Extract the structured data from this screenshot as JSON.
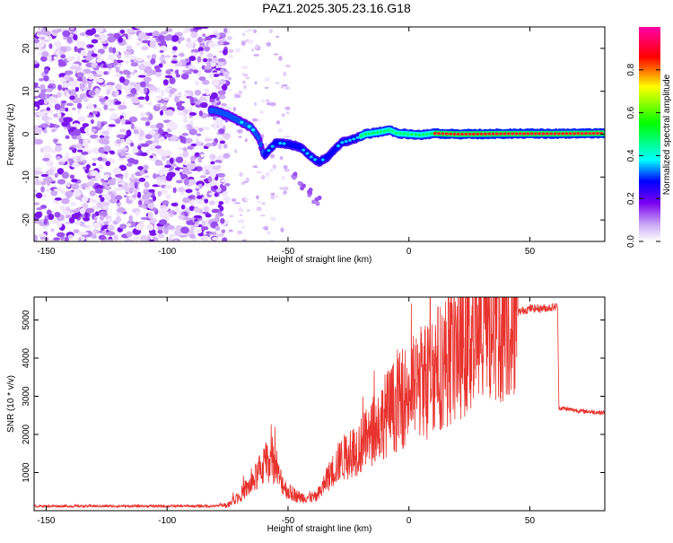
{
  "page_title": "PAZ1.2025.305.23.16.G18",
  "chart_data": [
    {
      "type": "heatmap",
      "name": "spectrogram",
      "xlabel": "Height of straight line (km)",
      "ylabel": "Frequency (Hz)",
      "xlim": [
        -155,
        81
      ],
      "ylim": [
        -25,
        25
      ],
      "xticks": [
        -150,
        -100,
        -50,
        0,
        50
      ],
      "xtick_labels": [
        "-150",
        "-100",
        "-50",
        "0",
        "50"
      ],
      "yticks": [
        -20,
        -10,
        0,
        10,
        20
      ],
      "ytick_labels": [
        "-20",
        "-10",
        "0",
        "10",
        "20"
      ],
      "main_trace": [
        [
          -80,
          5.5
        ],
        [
          -75,
          4.5
        ],
        [
          -70,
          3.0
        ],
        [
          -65,
          1.5
        ],
        [
          -62,
          -1.0
        ],
        [
          -60,
          -5.0
        ],
        [
          -55,
          -2.0
        ],
        [
          -50,
          -2.3
        ],
        [
          -45,
          -3.0
        ],
        [
          -40,
          -5.5
        ],
        [
          -37,
          -6.5
        ],
        [
          -33,
          -5.0
        ],
        [
          -28,
          -2.0
        ],
        [
          -22,
          -1.0
        ],
        [
          -18,
          0.0
        ],
        [
          -12,
          0.5
        ],
        [
          -8,
          1.0
        ],
        [
          -5,
          0.2
        ],
        [
          0,
          0.0
        ],
        [
          5,
          -0.2
        ],
        [
          10,
          0.2
        ],
        [
          20,
          0.0
        ],
        [
          40,
          0.1
        ],
        [
          60,
          0.1
        ],
        [
          80,
          0.2
        ]
      ],
      "secondary_trace": [
        [
          -48,
          -10.0
        ],
        [
          -44,
          -12.0
        ],
        [
          -40,
          -13.5
        ],
        [
          -38,
          -15.5
        ]
      ],
      "noise_region_x": [
        -155,
        -75
      ],
      "colorbar": {
        "label": "Normalized spectral amplitude",
        "range": [
          0,
          1
        ],
        "ticks": [
          0.0,
          0.2,
          0.4,
          0.6,
          0.8
        ],
        "tick_labels": [
          "0.0",
          "0.2",
          "0.4",
          "0.6",
          "0.8"
        ]
      }
    },
    {
      "type": "line",
      "name": "snr",
      "xlabel": "Height of straight line (km)",
      "ylabel": "SNR (10 * v/v)",
      "xlim": [
        -155,
        81
      ],
      "ylim": [
        0,
        5600
      ],
      "xticks": [
        -150,
        -100,
        -50,
        0,
        50
      ],
      "xtick_labels": [
        "-150",
        "-100",
        "-50",
        "0",
        "50"
      ],
      "yticks": [
        1000,
        2000,
        3000,
        4000,
        5000
      ],
      "ytick_labels": [
        "1000",
        "2000",
        "3000",
        "4000",
        "5000"
      ],
      "color": "#e8322d",
      "envelope": [
        [
          -155,
          120
        ],
        [
          -80,
          120
        ],
        [
          -75,
          150
        ],
        [
          -70,
          400
        ],
        [
          -65,
          700
        ],
        [
          -60,
          1200
        ],
        [
          -57,
          1400
        ],
        [
          -54,
          900
        ],
        [
          -50,
          500
        ],
        [
          -45,
          350
        ],
        [
          -38,
          350
        ],
        [
          -34,
          800
        ],
        [
          -30,
          1200
        ],
        [
          -25,
          1500
        ],
        [
          -20,
          1700
        ],
        [
          -15,
          2000
        ],
        [
          -10,
          2500
        ],
        [
          -5,
          2800
        ],
        [
          0,
          3100
        ],
        [
          5,
          3400
        ],
        [
          10,
          3700
        ],
        [
          15,
          3900
        ],
        [
          20,
          4200
        ],
        [
          25,
          4500
        ],
        [
          30,
          4700
        ],
        [
          35,
          4900
        ],
        [
          40,
          5100
        ],
        [
          45,
          5200
        ],
        [
          50,
          5300
        ],
        [
          55,
          5300
        ],
        [
          61.5,
          5350
        ],
        [
          62,
          2700
        ],
        [
          70,
          2620
        ],
        [
          80,
          2570
        ]
      ]
    }
  ]
}
